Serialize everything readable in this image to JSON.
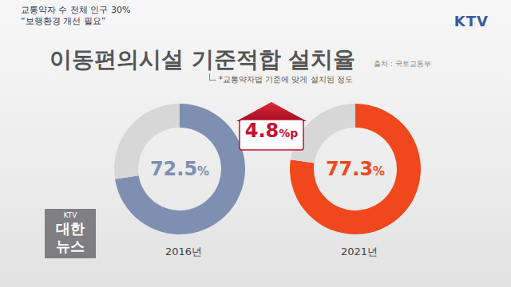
{
  "header": {
    "caption": [
      "교통약자 수 전체 인구 30%",
      "“보행환경 개선 필요”"
    ],
    "logo": "KTV",
    "title": "이동편의시설 기준적합 설치율",
    "source": "출처 : 국토교통부",
    "note": "*교통약자법 기준에 맞게 설치된 정도"
  },
  "annotation": "4.8%p",
  "bottom_logo": [
    "KTV",
    "대한",
    "뉴스"
  ],
  "chart_data": [
    {
      "type": "pie",
      "title": "2016년",
      "values": [
        72.5,
        27.5
      ],
      "value_labels": [
        "72.5%",
        null
      ],
      "colors": [
        "#7f8fb2",
        "#d7d7d7"
      ],
      "data_labels": true
    },
    {
      "type": "pie",
      "title": "2021년",
      "values": [
        77.3,
        22.7
      ],
      "value_labels": [
        "77.3%",
        null
      ],
      "colors": [
        "#f0481c",
        "#d7d7d7"
      ],
      "data_labels": true
    }
  ]
}
